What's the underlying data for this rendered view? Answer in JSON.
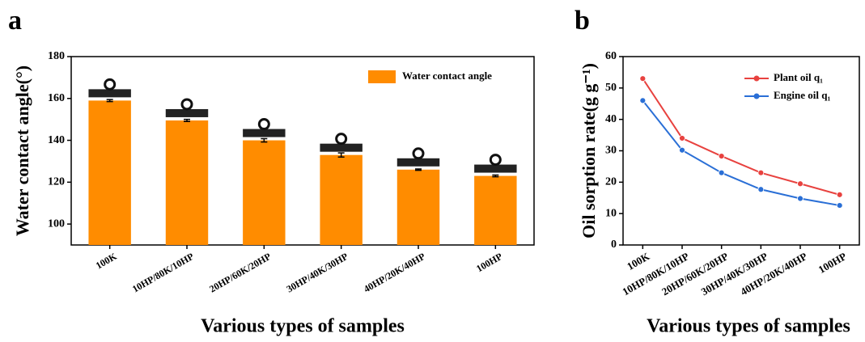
{
  "chart_data": [
    {
      "type": "bar",
      "panel": "a",
      "xlabel": "Various types of samples",
      "ylabel": "Water contact angle(°)",
      "categories": [
        "100K",
        "10HP/80K/10HP",
        "20HP/60K/20HP",
        "30HP/40K/30HP",
        "40HP/20K/40HP",
        "100HP"
      ],
      "series": [
        {
          "name": "Water contact angle",
          "color": "#ff8c00",
          "values": [
            159,
            149.5,
            140,
            133,
            126,
            123
          ],
          "errors": [
            0.5,
            0.5,
            0.8,
            1,
            0.3,
            0.4
          ]
        }
      ],
      "ylim": [
        90,
        180
      ],
      "yticks": [
        100,
        120,
        140,
        160,
        180
      ],
      "legend": "upper-right"
    },
    {
      "type": "line",
      "panel": "b",
      "xlabel": "Various types of samples",
      "ylabel": "Oil sorption rate(g g⁻¹)",
      "categories": [
        "100K",
        "10HP/80K/10HP",
        "20HP/60K/20HP",
        "30HP/40K/30HP",
        "40HP/20K/40HP",
        "100HP"
      ],
      "series": [
        {
          "name": "Plant oil q₁",
          "color": "#e8423f",
          "values": [
            53,
            34,
            28.3,
            23,
            19.5,
            16
          ]
        },
        {
          "name": "Engine oil q₁",
          "color": "#2a6fd6",
          "values": [
            46,
            30.2,
            23,
            17.7,
            14.8,
            12.6
          ]
        }
      ],
      "ylim": [
        0,
        60
      ],
      "yticks": [
        0,
        10,
        20,
        30,
        40,
        50,
        60
      ],
      "legend": "upper-right"
    }
  ]
}
